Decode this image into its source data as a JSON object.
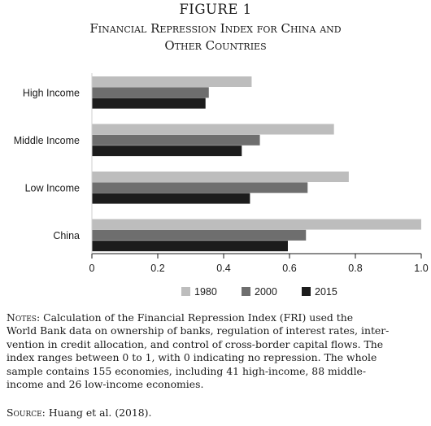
{
  "figure": {
    "label": "FIGURE 1",
    "title_lines": [
      "Financial Repression Index for China and",
      "Other Countries"
    ]
  },
  "chart_data": {
    "type": "bar",
    "orientation": "horizontal",
    "categories": [
      "High Income",
      "Middle Income",
      "Low Income",
      "China"
    ],
    "series": [
      {
        "name": "1980",
        "color": "#bdbdbd",
        "values": [
          0.485,
          0.735,
          0.78,
          1.0
        ]
      },
      {
        "name": "2000",
        "color": "#6e6e6e",
        "values": [
          0.355,
          0.51,
          0.655,
          0.65
        ]
      },
      {
        "name": "2015",
        "color": "#1c1c1c",
        "values": [
          0.345,
          0.455,
          0.48,
          0.595
        ]
      }
    ],
    "xlim": [
      0,
      1.0
    ],
    "xticks": [
      "0",
      "0.2",
      "0.4",
      "0.6",
      "0.8",
      "1.0"
    ],
    "xtick_values": [
      0,
      0.2,
      0.4,
      0.6,
      0.8,
      1.0
    ],
    "grid": false,
    "legend_position": "bottom-right"
  },
  "notes": {
    "label": "Notes:",
    "lines": [
      "Calculation of the Financial Repression Index (FRI) used the",
      "World Bank data on ownership of banks, regulation of interest rates, inter-",
      "vention in credit allocation, and control of cross-border capital flows. The",
      "index ranges between 0 to 1, with 0 indicating no repression. The whole",
      "sample contains 155 economies, including 41 high-income, 88 middle-",
      "income and 26 low-income economies."
    ]
  },
  "source": {
    "label": "Source:",
    "text": "Huang et al. (2018)."
  }
}
